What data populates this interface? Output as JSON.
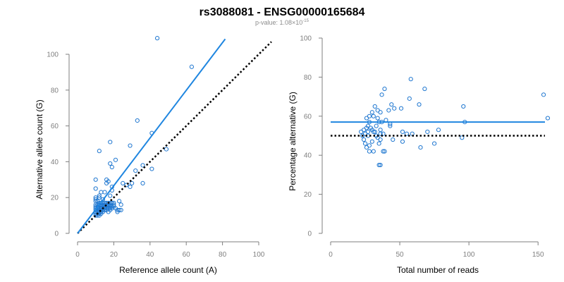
{
  "page": {
    "title": "rs3088081 - ENSG00000165684",
    "pvalue_prefix": "p-value: 1.08×10",
    "pvalue_exp": "-15"
  },
  "colors": {
    "points": "#1f77d0",
    "fit_line": "#1f86e0",
    "reference_line": "#000000",
    "axis": "#7f7f7f"
  },
  "chart_data": [
    {
      "type": "scatter",
      "xlabel": "Reference allele count (A)",
      "ylabel": "Alternative allele count (G)",
      "xlim": [
        0,
        100
      ],
      "ylim": [
        0,
        100
      ],
      "xticks": [
        0,
        20,
        40,
        60,
        80,
        100
      ],
      "yticks": [
        0,
        20,
        40,
        60,
        80,
        100
      ],
      "grid": false,
      "fit_line": {
        "x": [
          0,
          81.5
        ],
        "y": [
          0,
          108.5
        ]
      },
      "reference_line": {
        "x": [
          0,
          107
        ],
        "y": [
          0,
          107
        ]
      },
      "points": [
        [
          44,
          109
        ],
        [
          63,
          93
        ],
        [
          33,
          63
        ],
        [
          18,
          51
        ],
        [
          29,
          49
        ],
        [
          12,
          46
        ],
        [
          49,
          47
        ],
        [
          41,
          56
        ],
        [
          21,
          41
        ],
        [
          18,
          39
        ],
        [
          19,
          37
        ],
        [
          36,
          38
        ],
        [
          41,
          36
        ],
        [
          32,
          35
        ],
        [
          36,
          28
        ],
        [
          30,
          28
        ],
        [
          29,
          26
        ],
        [
          19,
          26
        ],
        [
          19,
          24
        ],
        [
          16,
          30
        ],
        [
          16,
          28
        ],
        [
          17,
          29
        ],
        [
          25,
          28
        ],
        [
          27,
          27
        ],
        [
          10,
          30
        ],
        [
          10,
          25
        ],
        [
          13,
          23
        ],
        [
          15,
          23
        ],
        [
          18,
          21
        ],
        [
          12,
          21
        ],
        [
          10,
          20
        ],
        [
          10,
          18
        ],
        [
          11,
          18
        ],
        [
          12,
          17
        ],
        [
          13,
          17
        ],
        [
          14,
          17
        ],
        [
          15,
          17
        ],
        [
          16,
          17
        ],
        [
          17,
          17
        ],
        [
          18,
          17
        ],
        [
          19,
          17
        ],
        [
          20,
          17
        ],
        [
          10,
          16
        ],
        [
          11,
          16
        ],
        [
          12,
          16
        ],
        [
          13,
          16
        ],
        [
          14,
          16
        ],
        [
          15,
          16
        ],
        [
          16,
          16
        ],
        [
          17,
          16
        ],
        [
          18,
          16
        ],
        [
          10,
          15
        ],
        [
          11,
          15
        ],
        [
          12,
          15
        ],
        [
          13,
          15
        ],
        [
          14,
          15
        ],
        [
          15,
          15
        ],
        [
          16,
          15
        ],
        [
          17,
          15
        ],
        [
          18,
          15
        ],
        [
          19,
          15
        ],
        [
          10,
          14
        ],
        [
          11,
          14
        ],
        [
          12,
          14
        ],
        [
          13,
          14
        ],
        [
          14,
          14
        ],
        [
          15,
          14
        ],
        [
          16,
          14
        ],
        [
          17,
          14
        ],
        [
          18,
          14
        ],
        [
          10,
          13
        ],
        [
          11,
          13
        ],
        [
          12,
          13
        ],
        [
          13,
          13
        ],
        [
          14,
          13
        ],
        [
          15,
          13
        ],
        [
          16,
          13
        ],
        [
          10,
          12
        ],
        [
          11,
          12
        ],
        [
          12,
          12
        ],
        [
          13,
          12
        ],
        [
          14,
          12
        ],
        [
          10,
          11
        ],
        [
          11,
          11
        ],
        [
          12,
          11
        ],
        [
          13,
          11
        ],
        [
          10,
          10
        ],
        [
          11,
          10
        ],
        [
          12,
          10
        ],
        [
          10,
          19
        ],
        [
          14,
          19
        ],
        [
          12,
          20
        ],
        [
          22,
          13
        ],
        [
          23,
          13
        ],
        [
          24,
          16
        ],
        [
          23,
          18
        ],
        [
          21,
          14
        ],
        [
          20,
          15
        ],
        [
          22,
          12
        ],
        [
          24,
          13
        ],
        [
          17,
          12
        ],
        [
          18,
          13
        ],
        [
          19,
          14
        ],
        [
          20,
          16
        ]
      ]
    },
    {
      "type": "scatter",
      "xlabel": "Total number of reads",
      "ylabel": "Percentage alternative (G)",
      "xlim": [
        0,
        155
      ],
      "ylim": [
        0,
        100
      ],
      "xticks": [
        0,
        50,
        100,
        150
      ],
      "yticks": [
        0,
        20,
        40,
        60,
        80,
        100
      ],
      "grid": false,
      "fit_line": {
        "x": [
          0,
          155
        ],
        "y": [
          57,
          57
        ]
      },
      "reference_line": {
        "x": [
          0,
          155
        ],
        "y": [
          50,
          50
        ]
      },
      "points": [
        [
          58,
          79
        ],
        [
          39,
          74
        ],
        [
          68,
          74
        ],
        [
          37,
          71
        ],
        [
          154,
          71
        ],
        [
          57,
          69
        ],
        [
          44,
          66
        ],
        [
          32,
          65
        ],
        [
          46,
          64
        ],
        [
          96,
          65
        ],
        [
          64,
          66
        ],
        [
          42,
          63
        ],
        [
          34,
          63
        ],
        [
          30,
          62
        ],
        [
          51,
          64
        ],
        [
          36,
          62
        ],
        [
          28,
          60
        ],
        [
          34,
          59
        ],
        [
          31,
          60
        ],
        [
          26,
          59
        ],
        [
          40,
          58
        ],
        [
          157,
          59
        ],
        [
          97,
          57
        ],
        [
          28,
          57
        ],
        [
          35,
          57
        ],
        [
          37,
          57
        ],
        [
          43,
          56
        ],
        [
          43,
          55
        ],
        [
          27,
          55
        ],
        [
          29,
          54
        ],
        [
          26,
          54
        ],
        [
          24,
          53
        ],
        [
          33,
          55
        ],
        [
          30,
          53
        ],
        [
          36,
          53
        ],
        [
          32,
          52
        ],
        [
          22,
          52
        ],
        [
          31,
          52
        ],
        [
          27,
          52
        ],
        [
          25,
          51
        ],
        [
          36,
          51
        ],
        [
          38,
          51
        ],
        [
          52,
          52
        ],
        [
          55,
          51
        ],
        [
          70,
          52
        ],
        [
          78,
          53
        ],
        [
          59,
          51
        ],
        [
          33,
          50
        ],
        [
          27,
          50
        ],
        [
          23,
          50
        ],
        [
          34,
          49
        ],
        [
          24,
          48
        ],
        [
          36,
          48
        ],
        [
          30,
          47
        ],
        [
          45,
          48
        ],
        [
          25,
          46
        ],
        [
          35,
          46
        ],
        [
          28,
          45
        ],
        [
          75,
          46
        ],
        [
          52,
          47
        ],
        [
          26,
          44
        ],
        [
          65,
          44
        ],
        [
          95,
          49
        ],
        [
          31,
          42
        ],
        [
          28,
          42
        ],
        [
          38,
          42
        ],
        [
          39,
          42
        ],
        [
          35,
          35
        ],
        [
          36,
          35
        ]
      ]
    }
  ]
}
